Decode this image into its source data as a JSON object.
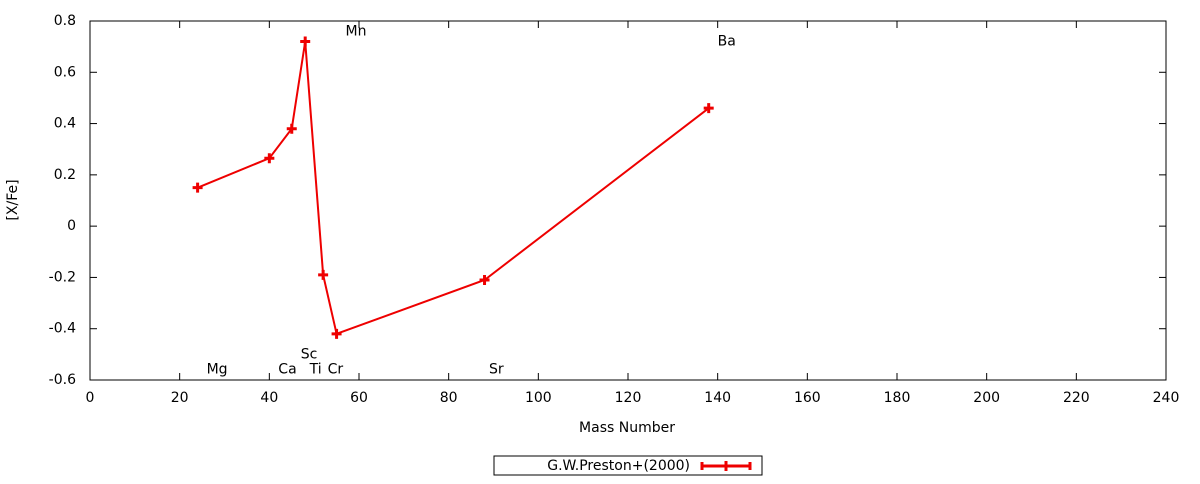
{
  "chart_data": {
    "type": "line",
    "x_label": "Mass Number",
    "y_label": "[X/Fe]",
    "x": [
      24,
      40,
      45,
      48,
      52,
      55,
      88,
      138
    ],
    "series": [
      {
        "name": "G.W.Preston+(2000)",
        "color": "#ee0000",
        "values": [
          0.15,
          0.265,
          0.38,
          0.72,
          -0.19,
          -0.42,
          -0.21,
          0.46
        ]
      }
    ],
    "annotations": [
      {
        "text": "Mg",
        "x": 26,
        "y": -0.56
      },
      {
        "text": "Ca",
        "x": 42,
        "y": -0.56
      },
      {
        "text": "Sc",
        "x": 47,
        "y": -0.5
      },
      {
        "text": "Ti",
        "x": 49,
        "y": -0.56
      },
      {
        "text": "Cr",
        "x": 53,
        "y": -0.56
      },
      {
        "text": "Mn",
        "x": 57,
        "y": 0.76
      },
      {
        "text": "Sr",
        "x": 89,
        "y": -0.56
      },
      {
        "text": "Ba",
        "x": 140,
        "y": 0.72
      }
    ],
    "xlim": [
      0,
      240
    ],
    "xticks": [
      0,
      20,
      40,
      60,
      80,
      100,
      120,
      140,
      160,
      180,
      200,
      220,
      240
    ],
    "ylim": [
      -0.6,
      0.8
    ],
    "yticks": [
      -0.6,
      -0.4,
      -0.2,
      0,
      0.2,
      0.4,
      0.6,
      0.8
    ],
    "legend": "bottom"
  }
}
